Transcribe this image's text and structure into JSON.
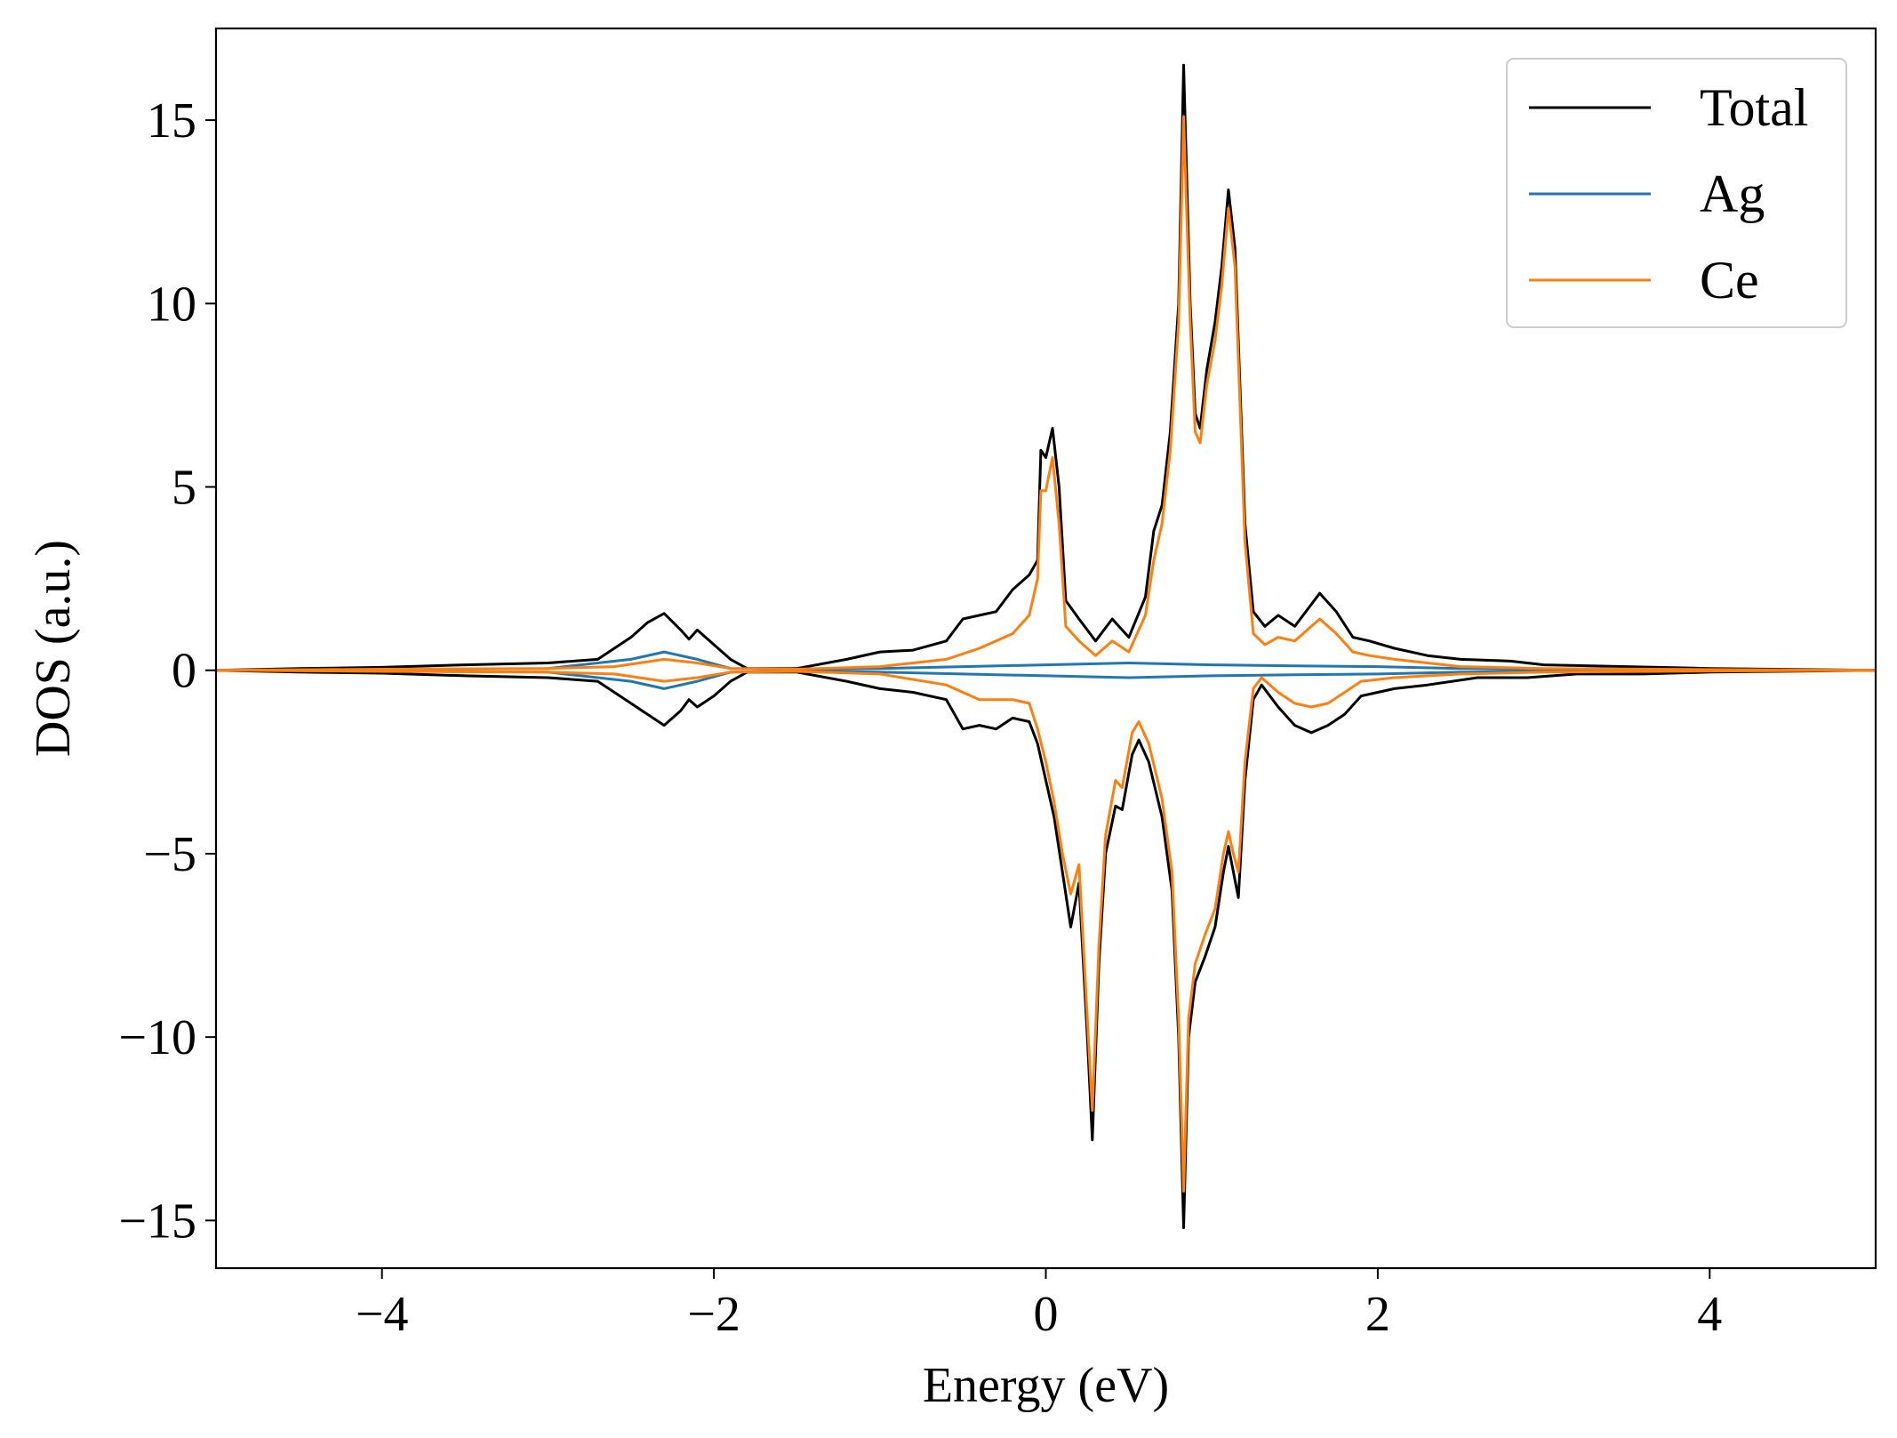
{
  "chart_data": {
    "type": "line",
    "xlabel": "Energy (eV)",
    "ylabel": "DOS (a.u.)",
    "xlim": [
      -5,
      5
    ],
    "ylim": [
      -16.3,
      17.5
    ],
    "xticks": [
      -4,
      -2,
      0,
      2,
      4
    ],
    "xtick_labels": [
      "−4",
      "−2",
      "0",
      "2",
      "4"
    ],
    "yticks": [
      -15,
      -10,
      -5,
      0,
      5,
      10,
      15
    ],
    "ytick_labels": [
      "−15",
      "−10",
      "−5",
      "0",
      "5",
      "10",
      "15"
    ],
    "grid": false,
    "legend": "top-right",
    "series": [
      {
        "name": "Total",
        "color": "#000000",
        "up": [
          [
            -5,
            0
          ],
          [
            -4.5,
            0.05
          ],
          [
            -4,
            0.08
          ],
          [
            -3.5,
            0.15
          ],
          [
            -3.0,
            0.2
          ],
          [
            -2.7,
            0.3
          ],
          [
            -2.5,
            0.9
          ],
          [
            -2.4,
            1.3
          ],
          [
            -2.3,
            1.55
          ],
          [
            -2.2,
            1.1
          ],
          [
            -2.15,
            0.85
          ],
          [
            -2.1,
            1.1
          ],
          [
            -2.0,
            0.7
          ],
          [
            -1.9,
            0.3
          ],
          [
            -1.8,
            0.05
          ],
          [
            -1.5,
            0.05
          ],
          [
            -1.2,
            0.3
          ],
          [
            -1.0,
            0.5
          ],
          [
            -0.8,
            0.55
          ],
          [
            -0.6,
            0.8
          ],
          [
            -0.5,
            1.4
          ],
          [
            -0.4,
            1.5
          ],
          [
            -0.3,
            1.6
          ],
          [
            -0.2,
            2.2
          ],
          [
            -0.1,
            2.6
          ],
          [
            -0.05,
            3.0
          ],
          [
            -0.03,
            6.0
          ],
          [
            0.0,
            5.8
          ],
          [
            0.04,
            6.6
          ],
          [
            0.08,
            5.0
          ],
          [
            0.12,
            1.9
          ],
          [
            0.2,
            1.4
          ],
          [
            0.3,
            0.8
          ],
          [
            0.4,
            1.4
          ],
          [
            0.5,
            0.9
          ],
          [
            0.6,
            2.0
          ],
          [
            0.65,
            3.8
          ],
          [
            0.7,
            4.5
          ],
          [
            0.75,
            6.5
          ],
          [
            0.8,
            10.0
          ],
          [
            0.83,
            16.5
          ],
          [
            0.87,
            10.0
          ],
          [
            0.9,
            7.0
          ],
          [
            0.93,
            6.6
          ],
          [
            0.97,
            8.2
          ],
          [
            1.02,
            9.5
          ],
          [
            1.06,
            11.0
          ],
          [
            1.1,
            13.1
          ],
          [
            1.14,
            11.5
          ],
          [
            1.2,
            4.0
          ],
          [
            1.25,
            1.6
          ],
          [
            1.32,
            1.2
          ],
          [
            1.4,
            1.5
          ],
          [
            1.5,
            1.2
          ],
          [
            1.55,
            1.5
          ],
          [
            1.65,
            2.1
          ],
          [
            1.75,
            1.6
          ],
          [
            1.85,
            0.9
          ],
          [
            1.95,
            0.8
          ],
          [
            2.1,
            0.6
          ],
          [
            2.3,
            0.4
          ],
          [
            2.5,
            0.3
          ],
          [
            2.8,
            0.25
          ],
          [
            3.0,
            0.15
          ],
          [
            3.5,
            0.1
          ],
          [
            4.0,
            0.05
          ],
          [
            5.0,
            0
          ]
        ],
        "down": [
          [
            -5,
            0
          ],
          [
            -4.5,
            -0.05
          ],
          [
            -4,
            -0.08
          ],
          [
            -3.5,
            -0.15
          ],
          [
            -3.0,
            -0.2
          ],
          [
            -2.7,
            -0.3
          ],
          [
            -2.5,
            -0.9
          ],
          [
            -2.4,
            -1.2
          ],
          [
            -2.3,
            -1.5
          ],
          [
            -2.2,
            -1.1
          ],
          [
            -2.15,
            -0.8
          ],
          [
            -2.1,
            -1.0
          ],
          [
            -2.0,
            -0.7
          ],
          [
            -1.9,
            -0.3
          ],
          [
            -1.8,
            -0.05
          ],
          [
            -1.5,
            -0.05
          ],
          [
            -1.2,
            -0.3
          ],
          [
            -1.0,
            -0.5
          ],
          [
            -0.8,
            -0.6
          ],
          [
            -0.6,
            -0.8
          ],
          [
            -0.5,
            -1.6
          ],
          [
            -0.4,
            -1.5
          ],
          [
            -0.3,
            -1.6
          ],
          [
            -0.2,
            -1.3
          ],
          [
            -0.1,
            -1.4
          ],
          [
            -0.05,
            -2.0
          ],
          [
            0.0,
            -3.0
          ],
          [
            0.05,
            -4.0
          ],
          [
            0.1,
            -5.5
          ],
          [
            0.15,
            -7.0
          ],
          [
            0.2,
            -5.8
          ],
          [
            0.25,
            -10.0
          ],
          [
            0.28,
            -12.8
          ],
          [
            0.32,
            -8.0
          ],
          [
            0.36,
            -5.0
          ],
          [
            0.42,
            -3.7
          ],
          [
            0.46,
            -3.8
          ],
          [
            0.52,
            -2.3
          ],
          [
            0.56,
            -1.9
          ],
          [
            0.62,
            -2.5
          ],
          [
            0.7,
            -4.0
          ],
          [
            0.76,
            -6.0
          ],
          [
            0.8,
            -10.0
          ],
          [
            0.83,
            -15.2
          ],
          [
            0.86,
            -10.0
          ],
          [
            0.9,
            -8.5
          ],
          [
            0.96,
            -7.8
          ],
          [
            1.02,
            -7.0
          ],
          [
            1.07,
            -5.5
          ],
          [
            1.1,
            -4.8
          ],
          [
            1.13,
            -5.5
          ],
          [
            1.16,
            -6.2
          ],
          [
            1.2,
            -3.0
          ],
          [
            1.25,
            -0.8
          ],
          [
            1.3,
            -0.4
          ],
          [
            1.4,
            -1.0
          ],
          [
            1.5,
            -1.5
          ],
          [
            1.6,
            -1.7
          ],
          [
            1.7,
            -1.5
          ],
          [
            1.8,
            -1.2
          ],
          [
            1.9,
            -0.7
          ],
          [
            2.1,
            -0.5
          ],
          [
            2.3,
            -0.4
          ],
          [
            2.6,
            -0.2
          ],
          [
            2.9,
            -0.2
          ],
          [
            3.2,
            -0.1
          ],
          [
            3.6,
            -0.1
          ],
          [
            4.0,
            -0.05
          ],
          [
            5.0,
            0
          ]
        ]
      },
      {
        "name": "Ag",
        "color": "#1f77b4",
        "up": [
          [
            -5,
            0
          ],
          [
            -4,
            0.02
          ],
          [
            -3,
            0.05
          ],
          [
            -2.5,
            0.3
          ],
          [
            -2.3,
            0.5
          ],
          [
            -2.1,
            0.3
          ],
          [
            -1.9,
            0.05
          ],
          [
            -1.5,
            0.02
          ],
          [
            -1.0,
            0.05
          ],
          [
            -0.5,
            0.1
          ],
          [
            0,
            0.15
          ],
          [
            0.5,
            0.2
          ],
          [
            1.0,
            0.15
          ],
          [
            1.5,
            0.12
          ],
          [
            2.0,
            0.1
          ],
          [
            2.5,
            0.05
          ],
          [
            3.0,
            0.02
          ],
          [
            4.0,
            0.01
          ],
          [
            5.0,
            0
          ]
        ],
        "down": [
          [
            -5,
            0
          ],
          [
            -4,
            -0.02
          ],
          [
            -3,
            -0.05
          ],
          [
            -2.5,
            -0.3
          ],
          [
            -2.3,
            -0.5
          ],
          [
            -2.1,
            -0.3
          ],
          [
            -1.9,
            -0.05
          ],
          [
            -1.5,
            -0.02
          ],
          [
            -1.0,
            -0.05
          ],
          [
            -0.5,
            -0.1
          ],
          [
            0,
            -0.15
          ],
          [
            0.5,
            -0.2
          ],
          [
            1.0,
            -0.15
          ],
          [
            1.5,
            -0.12
          ],
          [
            2.0,
            -0.1
          ],
          [
            2.5,
            -0.05
          ],
          [
            3.0,
            -0.02
          ],
          [
            4.0,
            -0.01
          ],
          [
            5.0,
            0
          ]
        ]
      },
      {
        "name": "Ce",
        "color": "#ff7f0e",
        "up": [
          [
            -5,
            0
          ],
          [
            -4,
            0.03
          ],
          [
            -3,
            0.05
          ],
          [
            -2.6,
            0.1
          ],
          [
            -2.3,
            0.3
          ],
          [
            -2.1,
            0.2
          ],
          [
            -1.9,
            0.05
          ],
          [
            -1.5,
            0.03
          ],
          [
            -1.0,
            0.1
          ],
          [
            -0.6,
            0.3
          ],
          [
            -0.4,
            0.6
          ],
          [
            -0.2,
            1.0
          ],
          [
            -0.1,
            1.5
          ],
          [
            -0.05,
            2.5
          ],
          [
            -0.03,
            4.9
          ],
          [
            0.0,
            4.9
          ],
          [
            0.04,
            5.8
          ],
          [
            0.08,
            4.0
          ],
          [
            0.12,
            1.2
          ],
          [
            0.2,
            0.8
          ],
          [
            0.3,
            0.4
          ],
          [
            0.4,
            0.8
          ],
          [
            0.5,
            0.5
          ],
          [
            0.6,
            1.5
          ],
          [
            0.65,
            3.0
          ],
          [
            0.7,
            4.0
          ],
          [
            0.75,
            6.0
          ],
          [
            0.8,
            9.5
          ],
          [
            0.83,
            15.1
          ],
          [
            0.87,
            9.5
          ],
          [
            0.9,
            6.5
          ],
          [
            0.93,
            6.2
          ],
          [
            0.97,
            7.8
          ],
          [
            1.02,
            9.0
          ],
          [
            1.06,
            10.5
          ],
          [
            1.1,
            12.6
          ],
          [
            1.14,
            11.0
          ],
          [
            1.2,
            3.5
          ],
          [
            1.25,
            1.0
          ],
          [
            1.32,
            0.7
          ],
          [
            1.4,
            0.9
          ],
          [
            1.5,
            0.8
          ],
          [
            1.55,
            1.0
          ],
          [
            1.65,
            1.4
          ],
          [
            1.75,
            1.0
          ],
          [
            1.85,
            0.5
          ],
          [
            1.95,
            0.4
          ],
          [
            2.1,
            0.3
          ],
          [
            2.5,
            0.1
          ],
          [
            3.0,
            0.05
          ],
          [
            4.0,
            0.02
          ],
          [
            5.0,
            0
          ]
        ],
        "down": [
          [
            -5,
            0
          ],
          [
            -4,
            -0.03
          ],
          [
            -3,
            -0.05
          ],
          [
            -2.6,
            -0.1
          ],
          [
            -2.3,
            -0.3
          ],
          [
            -2.1,
            -0.2
          ],
          [
            -1.9,
            -0.05
          ],
          [
            -1.5,
            -0.03
          ],
          [
            -1.0,
            -0.1
          ],
          [
            -0.6,
            -0.4
          ],
          [
            -0.4,
            -0.8
          ],
          [
            -0.2,
            -0.8
          ],
          [
            -0.1,
            -0.9
          ],
          [
            -0.05,
            -1.6
          ],
          [
            0.0,
            -2.5
          ],
          [
            0.05,
            -3.6
          ],
          [
            0.1,
            -5.0
          ],
          [
            0.15,
            -6.1
          ],
          [
            0.2,
            -5.3
          ],
          [
            0.25,
            -9.5
          ],
          [
            0.28,
            -12.0
          ],
          [
            0.32,
            -7.5
          ],
          [
            0.36,
            -4.5
          ],
          [
            0.42,
            -3.0
          ],
          [
            0.46,
            -3.2
          ],
          [
            0.52,
            -1.7
          ],
          [
            0.56,
            -1.4
          ],
          [
            0.62,
            -2.0
          ],
          [
            0.7,
            -3.5
          ],
          [
            0.76,
            -5.5
          ],
          [
            0.8,
            -9.5
          ],
          [
            0.83,
            -14.2
          ],
          [
            0.86,
            -9.5
          ],
          [
            0.9,
            -8.0
          ],
          [
            0.96,
            -7.2
          ],
          [
            1.02,
            -6.5
          ],
          [
            1.07,
            -5.0
          ],
          [
            1.1,
            -4.4
          ],
          [
            1.13,
            -5.0
          ],
          [
            1.16,
            -5.5
          ],
          [
            1.2,
            -2.5
          ],
          [
            1.25,
            -0.5
          ],
          [
            1.3,
            -0.2
          ],
          [
            1.4,
            -0.6
          ],
          [
            1.5,
            -0.9
          ],
          [
            1.6,
            -1.0
          ],
          [
            1.7,
            -0.9
          ],
          [
            1.8,
            -0.6
          ],
          [
            1.9,
            -0.3
          ],
          [
            2.1,
            -0.2
          ],
          [
            2.5,
            -0.1
          ],
          [
            3.0,
            -0.05
          ],
          [
            4.0,
            -0.02
          ],
          [
            5.0,
            0
          ]
        ]
      }
    ]
  }
}
